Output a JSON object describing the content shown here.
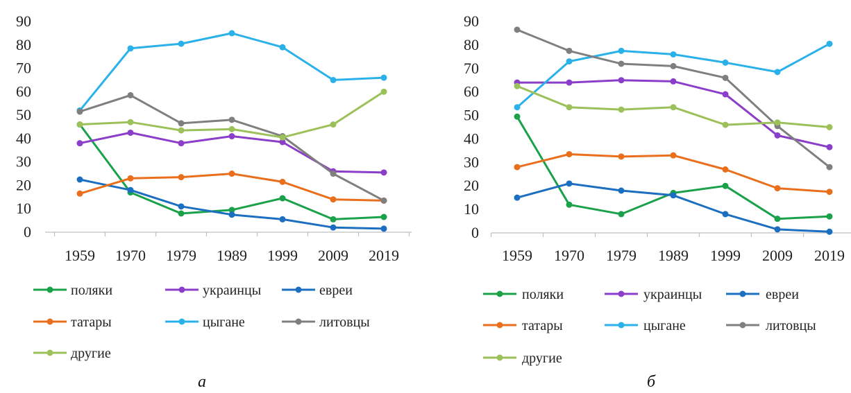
{
  "chart_data": [
    {
      "type": "line",
      "panel_label": "а",
      "categories": [
        "1959",
        "1970",
        "1979",
        "1989",
        "1999",
        "2009",
        "2019"
      ],
      "ylim": [
        0,
        90
      ],
      "yticks": [
        0,
        10,
        20,
        30,
        40,
        50,
        60,
        70,
        80,
        90
      ],
      "grid": false,
      "legend_placement": "bottom",
      "series": [
        {
          "name": "поляки",
          "color": "#1aa14a",
          "values": [
            46,
            17,
            8,
            9.5,
            14.5,
            5.5,
            6.5
          ]
        },
        {
          "name": "украинцы",
          "color": "#8b3ec9",
          "values": [
            38,
            42.5,
            38,
            41,
            38.5,
            26,
            25.5
          ]
        },
        {
          "name": "евреи",
          "color": "#1c6fc0",
          "values": [
            22.5,
            18,
            11,
            7.5,
            5.5,
            2,
            1.5
          ]
        },
        {
          "name": "татары",
          "color": "#ea6f1c",
          "values": [
            16.5,
            23,
            23.5,
            25,
            21.5,
            14,
            13.5
          ]
        },
        {
          "name": "цыгане",
          "color": "#2bb1ea",
          "values": [
            52,
            78.5,
            80.5,
            85,
            79,
            65,
            66
          ]
        },
        {
          "name": "литовцы",
          "color": "#7f7f7f",
          "values": [
            51.5,
            58.5,
            46.5,
            48,
            41,
            25,
            13.5
          ]
        },
        {
          "name": "другие",
          "color": "#9cc15a",
          "values": [
            46,
            47,
            43.5,
            44,
            40.5,
            46,
            60
          ]
        }
      ]
    },
    {
      "type": "line",
      "panel_label": "б",
      "categories": [
        "1959",
        "1970",
        "1979",
        "1989",
        "1999",
        "2009",
        "2019"
      ],
      "ylim": [
        0,
        90
      ],
      "yticks": [
        0,
        10,
        20,
        30,
        40,
        50,
        60,
        70,
        80,
        90
      ],
      "grid": false,
      "legend_placement": "bottom",
      "series": [
        {
          "name": "поляки",
          "color": "#1aa14a",
          "values": [
            49.5,
            12,
            8,
            17,
            20,
            6,
            7
          ]
        },
        {
          "name": "украинцы",
          "color": "#8b3ec9",
          "values": [
            64,
            64,
            65,
            64.5,
            59,
            41.5,
            36.5
          ]
        },
        {
          "name": "евреи",
          "color": "#1c6fc0",
          "values": [
            15,
            21,
            18,
            16,
            8,
            1.5,
            0.5
          ]
        },
        {
          "name": "татары",
          "color": "#ea6f1c",
          "values": [
            28,
            33.5,
            32.5,
            33,
            27,
            19,
            17.5
          ]
        },
        {
          "name": "цыгане",
          "color": "#2bb1ea",
          "values": [
            53.5,
            73,
            77.5,
            76,
            72.5,
            68.5,
            80.5
          ]
        },
        {
          "name": "литовцы",
          "color": "#7f7f7f",
          "values": [
            86.5,
            77.5,
            72,
            71,
            66,
            45.5,
            28
          ]
        },
        {
          "name": "другие",
          "color": "#9cc15a",
          "values": [
            62.5,
            53.5,
            52.5,
            53.5,
            46,
            47,
            45
          ]
        }
      ]
    }
  ]
}
